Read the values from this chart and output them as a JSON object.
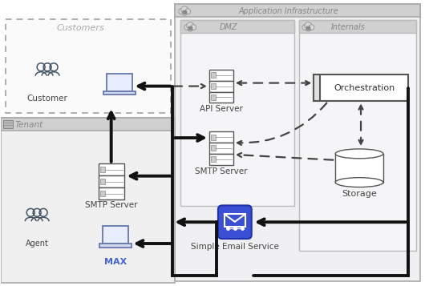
{
  "fig_w": 5.3,
  "fig_h": 3.57,
  "dpi": 100,
  "bg_color": "#ffffff",
  "colors": {
    "arrow_solid": "#111111",
    "arrow_dashed": "#444444",
    "text_dark": "#444444",
    "text_gray": "#999999",
    "ses_fill": "#3a4fd4",
    "ses_border": "#2233aa",
    "orch_fill": "#ffffff",
    "orch_border": "#555555",
    "server_fill": "#ffffff",
    "server_border": "#555555",
    "cyl_fill": "#ffffff",
    "cyl_border": "#555555",
    "header_fill": "#d0d0d0",
    "section_fill_app": "#f0f0f2",
    "section_fill_dmz": "#f5f5f7",
    "section_fill_int": "#f5f5f7",
    "section_fill_cust": "#fafafa",
    "section_fill_tenant": "#f0f0f0",
    "dashed_border": "#999999",
    "solid_border": "#bbbbbb",
    "cloud_fill": "#d8d8d8",
    "cloud_border": "#999999",
    "max_text": "#4466cc",
    "icon_blue": "#6677aa",
    "icon_dark": "#445566"
  },
  "labels": {
    "app_infra": "Application Infrastructure",
    "dmz": "DMZ",
    "internals": "Internals",
    "customers": "Customers",
    "tenant": "Tenant",
    "customer": "Customer",
    "agent": "Agent",
    "max": "MAX",
    "api_server": "API Server",
    "smtp_server_dmz": "SMTP Server",
    "smtp_server_tenant": "SMTP Server",
    "orchestration": "Orchestration",
    "storage": "Storage",
    "ses": "Simple Email Service"
  }
}
